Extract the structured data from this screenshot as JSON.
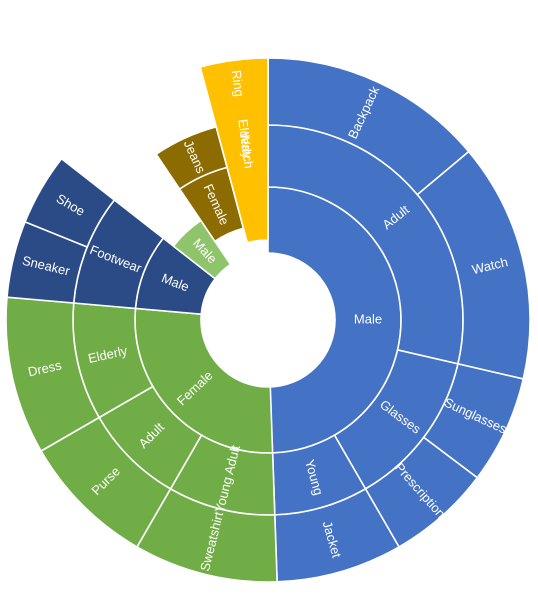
{
  "chart_data": {
    "type": "sunburst",
    "title": "",
    "colors": {
      "blue": "#4472C4",
      "green": "#70AD47",
      "light_green": "#8FC46A",
      "navy": "#2A4B86",
      "gold": "#FFC000",
      "brown": "#8C6B00",
      "dark_green": "#4E7A30"
    },
    "nodes": [
      {
        "label": "Male",
        "level": 1,
        "value": 35,
        "color": "blue"
      },
      {
        "label": "Adult",
        "level": 2,
        "value": 17,
        "color": "blue"
      },
      {
        "label": "Backpack",
        "level": 3,
        "value": 9,
        "color": "blue"
      },
      {
        "label": "Watch",
        "level": 3,
        "value": 8,
        "color": "blue"
      },
      {
        "label": "Glasses",
        "level": 2,
        "value": 12,
        "color": "blue"
      },
      {
        "label": "Sunglasses",
        "level": 3,
        "value": 6,
        "color": "blue"
      },
      {
        "label": "Prescription",
        "level": 3,
        "value": 6,
        "color": "blue"
      },
      {
        "label": "Young",
        "level": 2,
        "value": 6,
        "color": "blue"
      },
      {
        "label": "Jacket",
        "level": 3,
        "value": 6,
        "color": "blue"
      },
      {
        "label": "Female",
        "level": 1,
        "value": 29,
        "color": "green"
      },
      {
        "label": "Young Adult",
        "level": 2,
        "value": 9,
        "color": "green"
      },
      {
        "label": "Sweatshirt",
        "level": 3,
        "value": 9,
        "color": "green"
      },
      {
        "label": "Adult",
        "level": 2,
        "value": 9,
        "color": "green"
      },
      {
        "label": "Purse",
        "level": 3,
        "value": 9,
        "color": "green"
      },
      {
        "label": "Elderly",
        "level": 2,
        "value": 11,
        "color": "green"
      },
      {
        "label": "Dress",
        "level": 3,
        "value": 11,
        "color": "green"
      },
      {
        "label": "Male",
        "level": 1,
        "value": 14,
        "color": "navy"
      },
      {
        "label": "Footwear",
        "level": 2,
        "value": 14,
        "color": "navy"
      },
      {
        "label": "Sneaker",
        "level": 3,
        "value": 7,
        "color": "navy"
      },
      {
        "label": "Shoe",
        "level": 3,
        "value": 7,
        "color": "navy"
      },
      {
        "label": "Male",
        "level": 1,
        "value": 5,
        "color": "light_green"
      },
      {
        "label": "Female",
        "level": 2,
        "value": 5,
        "color": "brown"
      },
      {
        "label": "Jeans",
        "level": 3,
        "value": 5,
        "color": "brown"
      },
      {
        "label": "Elderly",
        "level": 2,
        "value": 5,
        "color": "dark_green"
      },
      {
        "label": "Ring",
        "level": 3,
        "value": 5,
        "color": "dark_green"
      },
      {
        "label": "Watch",
        "level": 3,
        "value": 4,
        "color": "gold"
      }
    ]
  }
}
